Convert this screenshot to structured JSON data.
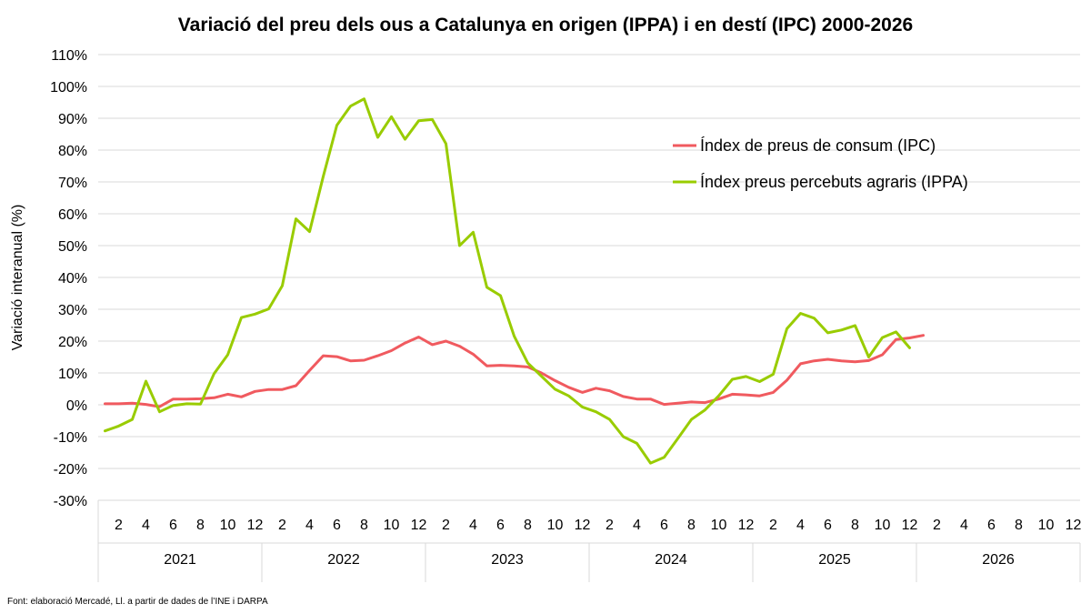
{
  "chart_data": {
    "type": "line",
    "title": "Variació del preu dels ous a Catalunya en origen (IPPA) i en destí (IPC) 2000-2026",
    "ylabel": "Variació interanual (%)",
    "xlabel": "",
    "source": "Font: elaboració Mercadé, Ll. a partir de dades de l’INE i DARPA",
    "ylim": [
      -30,
      110
    ],
    "y_ticks": [
      "-30%",
      "-20%",
      "-10%",
      "0%",
      "10%",
      "20%",
      "30%",
      "40%",
      "50%",
      "60%",
      "70%",
      "80%",
      "90%",
      "100%",
      "110%"
    ],
    "y_tick_values": [
      -30,
      -20,
      -10,
      0,
      10,
      20,
      30,
      40,
      50,
      60,
      70,
      80,
      90,
      100,
      110
    ],
    "years": [
      "2021",
      "2022",
      "2023",
      "2024",
      "2025",
      "2026"
    ],
    "month_ticks": [
      "2",
      "4",
      "6",
      "8",
      "10",
      "12"
    ],
    "month_tick_values": [
      2,
      4,
      6,
      8,
      10,
      12
    ],
    "months_per_year": 12,
    "grid": true,
    "legend_position": "top-right",
    "series": [
      {
        "name": "Índex de preus de consum (IPC)",
        "color": "#f05a5f",
        "values": [
          0.3,
          0.3,
          0.5,
          0.1,
          -0.6,
          1.8,
          1.8,
          1.9,
          2.2,
          3.3,
          2.5,
          4.2,
          4.8,
          4.8,
          6.0,
          10.8,
          15.4,
          15.1,
          13.8,
          14.0,
          15.4,
          17.0,
          19.4,
          21.3,
          18.9,
          20.0,
          18.4,
          15.9,
          12.2,
          12.4,
          12.2,
          11.9,
          10.0,
          7.6,
          5.5,
          3.9,
          5.2,
          4.4,
          2.6,
          1.8,
          1.8,
          0.1,
          0.5,
          0.9,
          0.7,
          1.8,
          3.3,
          3.1,
          2.8,
          3.9,
          7.7,
          12.9,
          13.8,
          14.3,
          13.8,
          13.5,
          13.9,
          15.7,
          20.5,
          21.0,
          21.8
        ]
      },
      {
        "name": "Índex preus percebuts agraris (IPPA)",
        "color": "#99cc00",
        "values": [
          -8.2,
          -6.7,
          -4.6,
          7.4,
          -2.2,
          -0.2,
          0.3,
          0.2,
          9.8,
          15.7,
          27.4,
          28.5,
          30.1,
          37.4,
          58.4,
          54.4,
          71.7,
          87.8,
          93.8,
          96.1,
          84.0,
          90.5,
          83.4,
          89.2,
          89.6,
          82.0,
          50.0,
          54.2,
          36.9,
          34.3,
          21.6,
          13.1,
          9.0,
          4.9,
          2.8,
          -0.7,
          -2.2,
          -4.6,
          -10.0,
          -12.1,
          -18.3,
          -16.5,
          -10.6,
          -4.6,
          -1.6,
          2.8,
          8.0,
          8.9,
          7.3,
          9.6,
          23.9,
          28.7,
          27.2,
          22.6,
          23.5,
          24.9,
          15.0,
          21.1,
          22.9,
          17.9
        ]
      }
    ]
  }
}
